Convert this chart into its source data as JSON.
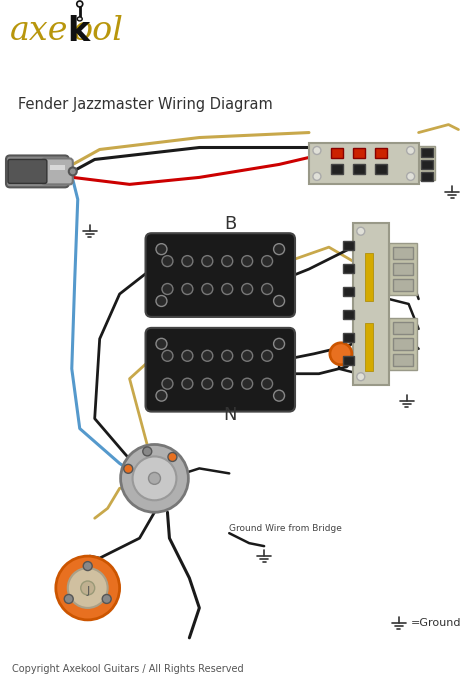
{
  "title": "Fender Jazzmaster Wiring Diagram",
  "copyright": "Copyright Axekool Guitars / All Rights Reserved",
  "ground_label": "=Ground",
  "label_B": "B",
  "label_N": "N",
  "label_ground_wire": "Ground Wire from Bridge",
  "bg_color": "#ffffff",
  "wire_black": "#1a1a1a",
  "wire_red": "#cc0000",
  "wire_gold": "#c8a84b",
  "wire_blue": "#5599cc",
  "pickup_fill": "#1a1a1a",
  "switch_plate": "#c8c8b0",
  "pot_gray": "#aaaaaa",
  "pot_light": "#cccccc",
  "orange_cap": "#e87020",
  "logo_gold": "#b8960c",
  "logo_black": "#111111",
  "knob_gray": "#b0b0b0",
  "terminal_dark": "#222222",
  "terminal_red": "#cc2200",
  "ground_line_color": "#333333"
}
